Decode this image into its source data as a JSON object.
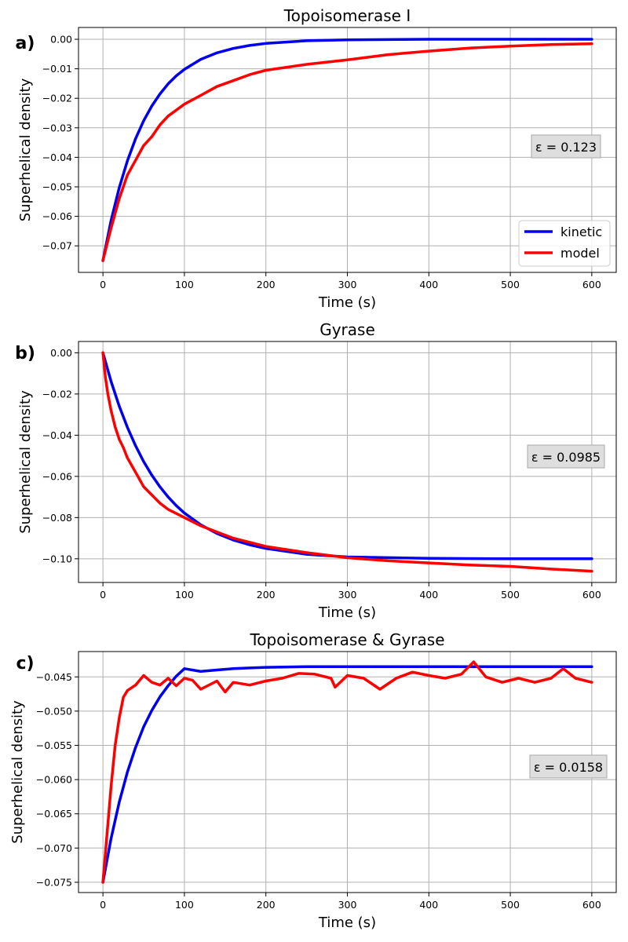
{
  "colors": {
    "kinetic": "#0000ee",
    "model": "#ff0000",
    "grid": "#b0b0b0"
  },
  "legend": {
    "kinetic": "kinetic",
    "model": "model",
    "placement": "lower-right",
    "panel": 0
  },
  "chart_data": [
    {
      "type": "line",
      "panel_label": "a)",
      "title": "Topoisomerase I",
      "xlabel": "Time (s)",
      "ylabel": "Superhelical density",
      "xlim": [
        -30,
        630
      ],
      "ylim": [
        -0.079,
        0.004
      ],
      "xticks": [
        0,
        100,
        200,
        300,
        400,
        500,
        600
      ],
      "yticks": [
        0.0,
        -0.01,
        -0.02,
        -0.03,
        -0.04,
        -0.05,
        -0.06,
        -0.07
      ],
      "ytick_labels": [
        "0.00",
        "−0.01",
        "−0.02",
        "−0.03",
        "−0.04",
        "−0.05",
        "−0.06",
        "−0.07"
      ],
      "grid": true,
      "annotation": "ε = 0.123",
      "series": [
        {
          "name": "kinetic",
          "x": [
            0,
            10,
            20,
            30,
            40,
            50,
            60,
            70,
            80,
            90,
            100,
            120,
            140,
            160,
            180,
            200,
            250,
            300,
            400,
            500,
            600
          ],
          "y": [
            -0.075,
            -0.0614,
            -0.0503,
            -0.0412,
            -0.0337,
            -0.0276,
            -0.0226,
            -0.0185,
            -0.0151,
            -0.0124,
            -0.0102,
            -0.0068,
            -0.0046,
            -0.0031,
            -0.0021,
            -0.0014,
            -0.0005,
            -0.0002,
            0.0,
            0.0,
            0.0
          ]
        },
        {
          "name": "model",
          "x": [
            0,
            10,
            20,
            30,
            40,
            50,
            60,
            70,
            80,
            90,
            100,
            120,
            140,
            160,
            180,
            200,
            250,
            300,
            350,
            400,
            450,
            500,
            550,
            600
          ],
          "y": [
            -0.075,
            -0.064,
            -0.054,
            -0.046,
            -0.041,
            -0.036,
            -0.033,
            -0.029,
            -0.026,
            -0.024,
            -0.022,
            -0.019,
            -0.016,
            -0.014,
            -0.012,
            -0.0105,
            -0.0085,
            -0.007,
            -0.0052,
            -0.004,
            -0.003,
            -0.0023,
            -0.0018,
            -0.0015
          ]
        }
      ]
    },
    {
      "type": "line",
      "panel_label": "b)",
      "title": "Gyrase",
      "xlabel": "Time (s)",
      "ylabel": "Superhelical density",
      "xlim": [
        -30,
        630
      ],
      "ylim": [
        -0.1115,
        0.0055
      ],
      "xticks": [
        0,
        100,
        200,
        300,
        400,
        500,
        600
      ],
      "yticks": [
        0.0,
        -0.02,
        -0.04,
        -0.06,
        -0.08,
        -0.1
      ],
      "ytick_labels": [
        "0.00",
        "−0.02",
        "−0.04",
        "−0.06",
        "−0.08",
        "−0.10"
      ],
      "grid": true,
      "annotation": "ε = 0.0985",
      "series": [
        {
          "name": "kinetic",
          "x": [
            0,
            10,
            20,
            30,
            40,
            50,
            60,
            70,
            80,
            90,
            100,
            120,
            140,
            160,
            180,
            200,
            250,
            300,
            400,
            500,
            600
          ],
          "y": [
            0.0,
            -0.0139,
            -0.0259,
            -0.0362,
            -0.0451,
            -0.0528,
            -0.0594,
            -0.0651,
            -0.07,
            -0.0742,
            -0.0778,
            -0.0835,
            -0.0877,
            -0.0909,
            -0.0932,
            -0.095,
            -0.0978,
            -0.0991,
            -0.0998,
            -0.1,
            -0.1
          ]
        },
        {
          "name": "model",
          "x": [
            0,
            3,
            6,
            10,
            15,
            20,
            25,
            30,
            40,
            50,
            60,
            70,
            80,
            90,
            100,
            120,
            140,
            160,
            180,
            200,
            250,
            300,
            350,
            400,
            450,
            500,
            550,
            600
          ],
          "y": [
            0.0,
            -0.012,
            -0.02,
            -0.028,
            -0.036,
            -0.042,
            -0.046,
            -0.051,
            -0.058,
            -0.065,
            -0.069,
            -0.073,
            -0.076,
            -0.078,
            -0.08,
            -0.084,
            -0.087,
            -0.09,
            -0.092,
            -0.094,
            -0.097,
            -0.0995,
            -0.101,
            -0.102,
            -0.103,
            -0.1037,
            -0.105,
            -0.106
          ]
        }
      ]
    },
    {
      "type": "line",
      "panel_label": "c)",
      "title": "Topoisomerase & Gyrase",
      "xlabel": "Time (s)",
      "ylabel": "Superhelical density",
      "xlim": [
        -30,
        630
      ],
      "ylim": [
        -0.0765,
        -0.0413
      ],
      "xticks": [
        0,
        100,
        200,
        300,
        400,
        500,
        600
      ],
      "yticks": [
        -0.045,
        -0.05,
        -0.055,
        -0.06,
        -0.065,
        -0.07,
        -0.075
      ],
      "ytick_labels": [
        "−0.045",
        "−0.050",
        "−0.055",
        "−0.060",
        "−0.065",
        "−0.070",
        "−0.075"
      ],
      "grid": true,
      "annotation": "ε = 0.0158",
      "series": [
        {
          "name": "kinetic",
          "x": [
            0,
            10,
            20,
            30,
            40,
            50,
            60,
            70,
            80,
            90,
            100,
            120,
            140,
            160,
            180,
            200,
            250,
            300,
            400,
            500,
            600
          ],
          "y": [
            -0.075,
            -0.0686,
            -0.0633,
            -0.0589,
            -0.0553,
            -0.0523,
            -0.0499,
            -0.0479,
            -0.0463,
            -0.0449,
            -0.0438,
            -0.0442,
            -0.044,
            -0.0438,
            -0.0437,
            -0.0436,
            -0.0435,
            -0.0435,
            -0.0435,
            -0.0435,
            -0.0435
          ]
        },
        {
          "name": "model",
          "x": [
            0,
            5,
            10,
            15,
            20,
            25,
            30,
            40,
            50,
            60,
            70,
            80,
            90,
            100,
            110,
            120,
            140,
            150,
            160,
            180,
            200,
            220,
            240,
            260,
            280,
            285,
            300,
            320,
            340,
            360,
            380,
            400,
            420,
            440,
            455,
            470,
            490,
            510,
            530,
            550,
            565,
            580,
            600
          ],
          "y": [
            -0.075,
            -0.068,
            -0.061,
            -0.055,
            -0.051,
            -0.048,
            -0.047,
            -0.0462,
            -0.0448,
            -0.0458,
            -0.0462,
            -0.0452,
            -0.0463,
            -0.0452,
            -0.0455,
            -0.0468,
            -0.0456,
            -0.0472,
            -0.0458,
            -0.0462,
            -0.0456,
            -0.0452,
            -0.0445,
            -0.0446,
            -0.0452,
            -0.0465,
            -0.0448,
            -0.0452,
            -0.0468,
            -0.0452,
            -0.0443,
            -0.0448,
            -0.0452,
            -0.0446,
            -0.0428,
            -0.045,
            -0.0458,
            -0.0452,
            -0.0458,
            -0.0452,
            -0.0438,
            -0.0452,
            -0.0458
          ]
        }
      ]
    }
  ]
}
